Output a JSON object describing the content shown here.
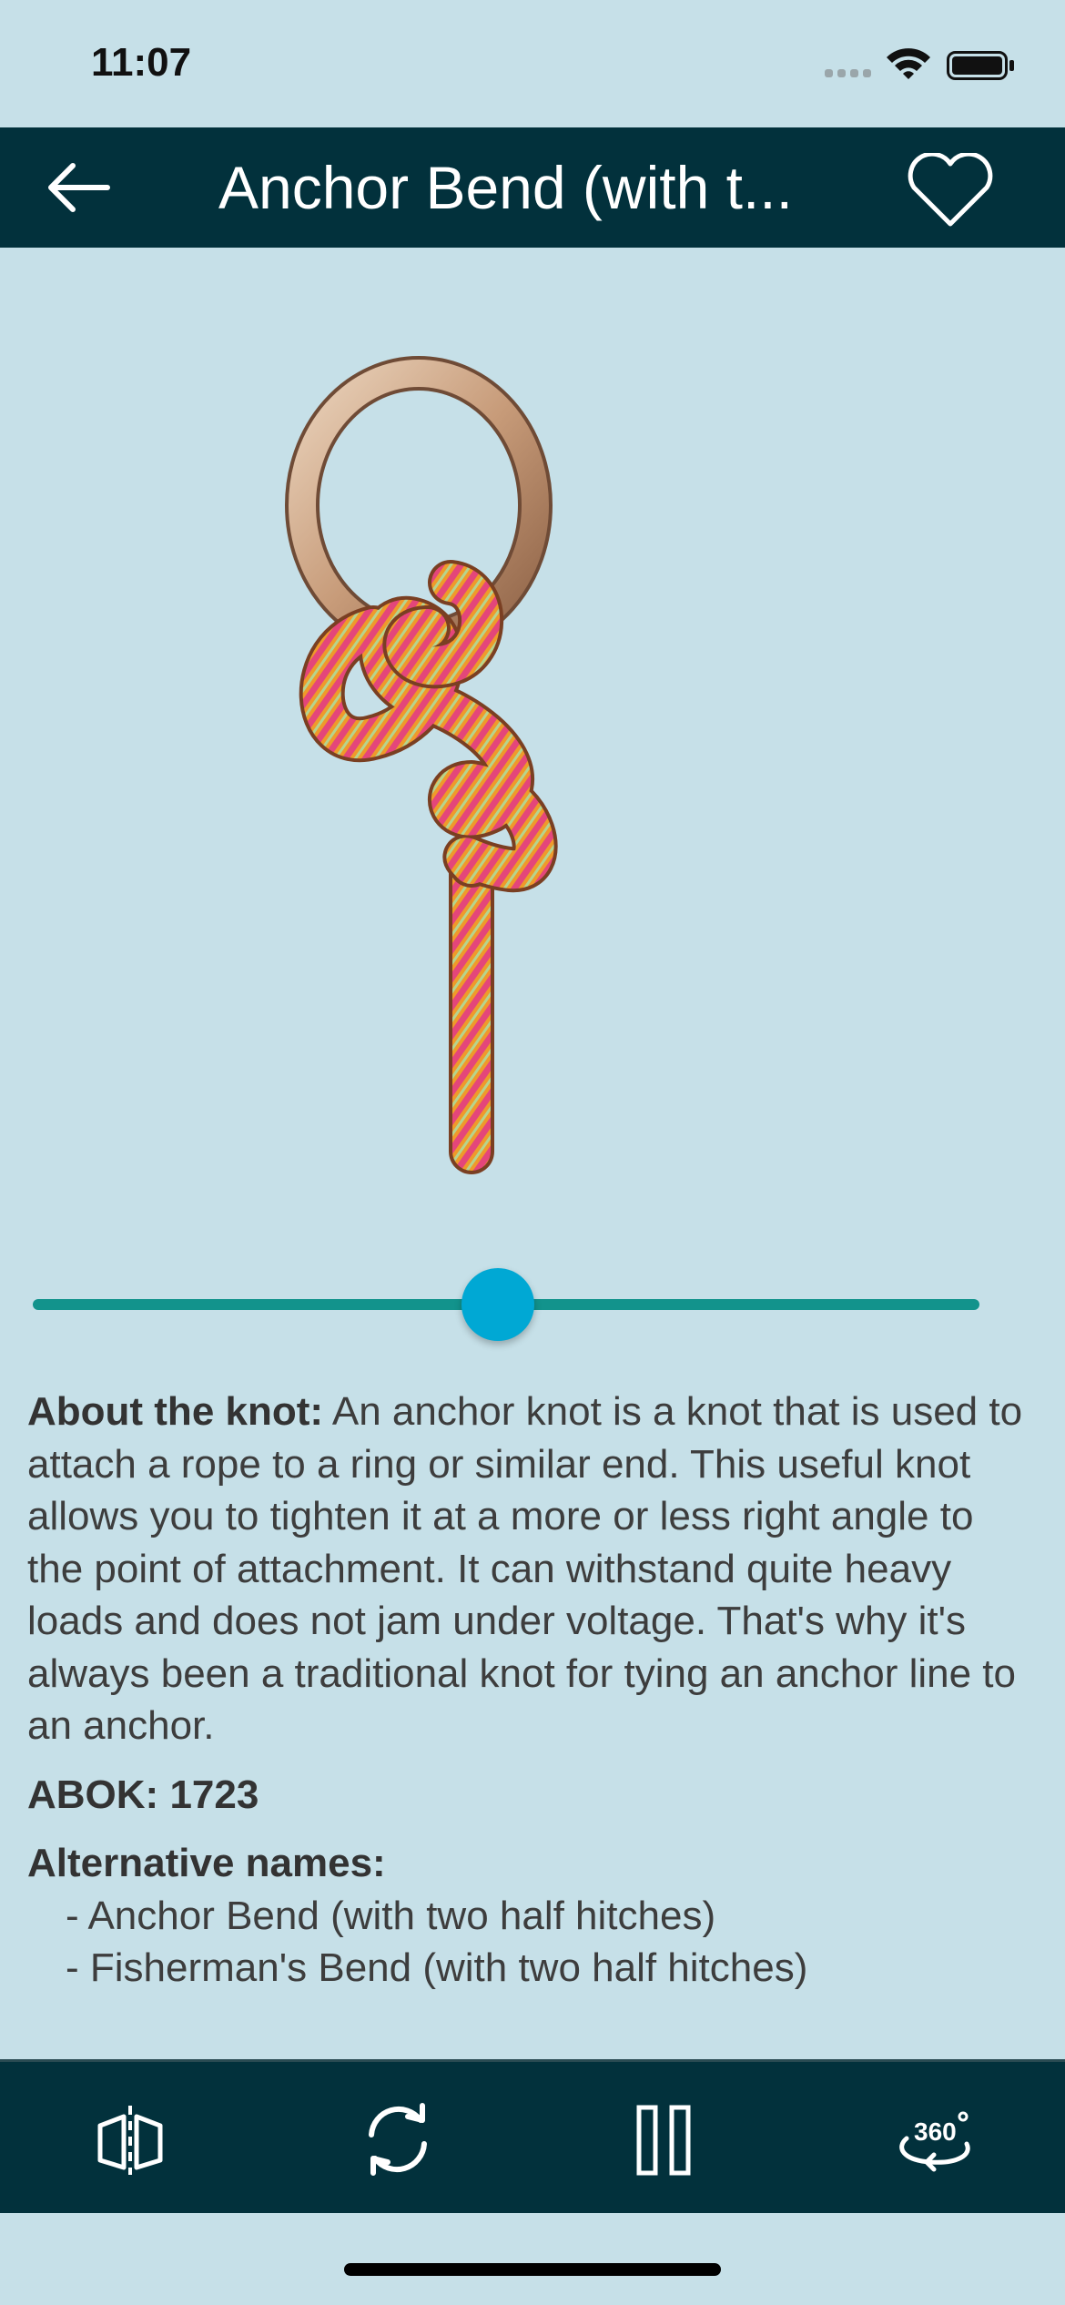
{
  "status_bar": {
    "time": "11:07"
  },
  "header": {
    "title": "Anchor Bend (with t..."
  },
  "slider": {
    "progress": 0.49
  },
  "about": {
    "label": "About the knot:",
    "text": " An anchor knot is a knot that is used to attach a rope to a ring or similar end. This useful knot allows you to tighten it at a more or less right angle to the point of attachment. It can withstand quite heavy loads and does not jam under voltage. That's why it's always been a traditional knot for tying an anchor line to an anchor."
  },
  "abok": {
    "label": "ABOK:",
    "value": "1723"
  },
  "alternative_names": {
    "label": "Alternative names:",
    "items": [
      "- Anchor Bend (with two half hitches)",
      "- Fisherman's Bend (with two half hitches)"
    ]
  },
  "colors": {
    "header_bg": "#02313c",
    "page_bg": "#c6e0e8",
    "accent": "#00a8d4",
    "track": "#12938c"
  },
  "toolbar": {
    "icons": [
      "mirror-flip-icon",
      "rotate-icon",
      "pause-icon",
      "rotate-360-icon"
    ]
  }
}
